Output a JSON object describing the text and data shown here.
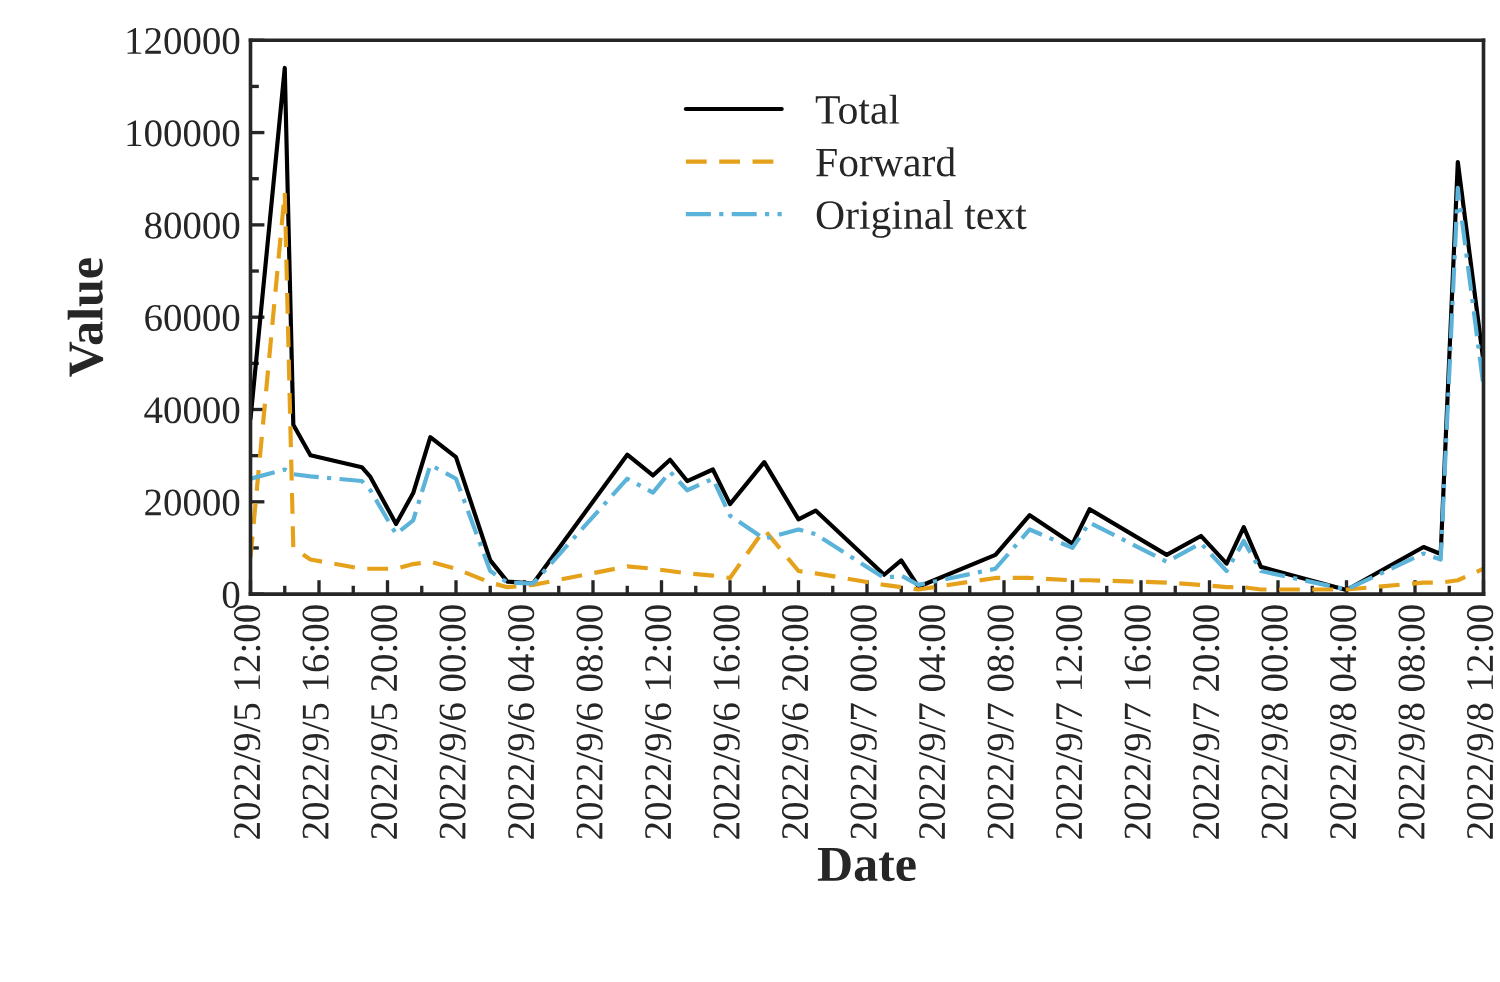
{
  "chart_data": {
    "type": "line",
    "xlabel": "Date",
    "ylabel": "Value",
    "x": [
      "2022-09-05T12:00",
      "2022-09-05T14:00",
      "2022-09-05T14:30",
      "2022-09-05T15:30",
      "2022-09-05T18:30",
      "2022-09-05T19:00",
      "2022-09-05T20:30",
      "2022-09-05T21:30",
      "2022-09-05T22:30",
      "2022-09-06T00:00",
      "2022-09-06T02:00",
      "2022-09-06T03:00",
      "2022-09-06T04:30",
      "2022-09-06T10:00",
      "2022-09-06T11:30",
      "2022-09-06T12:30",
      "2022-09-06T13:30",
      "2022-09-06T15:00",
      "2022-09-06T16:00",
      "2022-09-06T18:00",
      "2022-09-06T20:00",
      "2022-09-06T21:00",
      "2022-09-07T01:00",
      "2022-09-07T02:00",
      "2022-09-07T03:00",
      "2022-09-07T07:30",
      "2022-09-07T09:30",
      "2022-09-07T12:00",
      "2022-09-07T13:00",
      "2022-09-07T17:30",
      "2022-09-07T19:30",
      "2022-09-07T21:00",
      "2022-09-07T22:00",
      "2022-09-07T23:00",
      "2022-09-08T04:00",
      "2022-09-08T08:30",
      "2022-09-08T09:30",
      "2022-09-08T10:30",
      "2022-09-08T12:00"
    ],
    "series": [
      {
        "name": "Total",
        "color": "#000000",
        "line_style": "solid",
        "values": [
          38000,
          114000,
          36700,
          30100,
          27500,
          25400,
          15200,
          21900,
          34000,
          29700,
          7300,
          2700,
          2300,
          30200,
          25700,
          29100,
          24500,
          27000,
          19500,
          28600,
          16200,
          18100,
          4200,
          7300,
          1600,
          8500,
          17100,
          10900,
          18400,
          8500,
          12600,
          6600,
          14500,
          5900,
          900,
          10200,
          8700,
          93600,
          50300
        ]
      },
      {
        "name": "Forward",
        "color": "#e6a11a",
        "line_style": "dashed",
        "values": [
          8000,
          87000,
          10000,
          7500,
          5500,
          5500,
          5500,
          6500,
          7000,
          5500,
          2500,
          1500,
          2000,
          6000,
          5500,
          5000,
          4500,
          4000,
          3500,
          14000,
          5000,
          4500,
          2000,
          1500,
          1000,
          3500,
          3500,
          3000,
          3000,
          2500,
          2000,
          1500,
          1500,
          1000,
          1000,
          2500,
          2500,
          3000,
          5500
        ]
      },
      {
        "name": "Original text",
        "color": "#5bb3d9",
        "line_style": "dashdot",
        "values": [
          25000,
          27000,
          26000,
          25500,
          24500,
          22500,
          13000,
          16000,
          28000,
          25000,
          5000,
          2500,
          2300,
          25000,
          22000,
          26500,
          22500,
          25000,
          17000,
          12000,
          14000,
          13000,
          3500,
          4000,
          2000,
          5500,
          14000,
          10000,
          15500,
          7000,
          11000,
          5000,
          11500,
          5000,
          1000,
          8800,
          7500,
          88000,
          45000
        ]
      }
    ],
    "xlim": [
      "2022-09-05T12:00",
      "2022-09-08T12:00"
    ],
    "xticks": [
      {
        "value": "2022-09-05T12:00",
        "label": "2022/9/5 12:00"
      },
      {
        "value": "2022-09-05T16:00",
        "label": "2022/9/5 16:00"
      },
      {
        "value": "2022-09-05T20:00",
        "label": "2022/9/5 20:00"
      },
      {
        "value": "2022-09-06T00:00",
        "label": "2022/9/6 00:00"
      },
      {
        "value": "2022-09-06T04:00",
        "label": "2022/9/6 04:00"
      },
      {
        "value": "2022-09-06T08:00",
        "label": "2022/9/6 08:00"
      },
      {
        "value": "2022-09-06T12:00",
        "label": "2022/9/6 12:00"
      },
      {
        "value": "2022-09-06T16:00",
        "label": "2022/9/6 16:00"
      },
      {
        "value": "2022-09-06T20:00",
        "label": "2022/9/6 20:00"
      },
      {
        "value": "2022-09-07T00:00",
        "label": "2022/9/7 00:00"
      },
      {
        "value": "2022-09-07T04:00",
        "label": "2022/9/7 04:00"
      },
      {
        "value": "2022-09-07T08:00",
        "label": "2022/9/7 08:00"
      },
      {
        "value": "2022-09-07T12:00",
        "label": "2022/9/7 12:00"
      },
      {
        "value": "2022-09-07T16:00",
        "label": "2022/9/7 16:00"
      },
      {
        "value": "2022-09-07T20:00",
        "label": "2022/9/7 20:00"
      },
      {
        "value": "2022-09-08T00:00",
        "label": "2022/9/8 00:00"
      },
      {
        "value": "2022-09-08T04:00",
        "label": "2022/9/8 04:00"
      },
      {
        "value": "2022-09-08T08:00",
        "label": "2022/9/8 08:00"
      },
      {
        "value": "2022-09-08T12:00",
        "label": "2022/9/8 12:00"
      }
    ],
    "ylim": [
      0,
      120000
    ],
    "yticks": [
      0,
      20000,
      40000,
      60000,
      80000,
      100000,
      120000
    ],
    "legend": "top right",
    "grid": false
  }
}
